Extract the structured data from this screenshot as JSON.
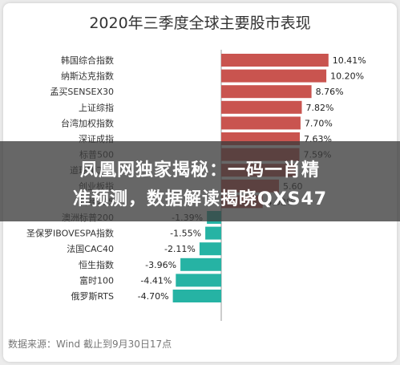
{
  "chart_data": {
    "type": "bar",
    "orientation": "horizontal",
    "title": "2020年三季度全球主要股市表现",
    "categories": [
      "韩国综合指数",
      "纳斯达克指数",
      "孟买SENSEX30",
      "上证综指",
      "台湾加权指数",
      "深证成指",
      "标普500",
      "道琼斯工业",
      "创业板指",
      "日经225",
      "澳洲标普200",
      "圣保罗IBOVESPA指数",
      "法国CAC40",
      "恒生指数",
      "富时100",
      "俄罗斯RTS"
    ],
    "values": [
      10.41,
      10.2,
      8.76,
      7.82,
      7.7,
      7.63,
      7.59,
      7.2,
      5.6,
      4.02,
      -1.39,
      -1.55,
      -2.11,
      -3.96,
      -4.41,
      -4.7
    ],
    "value_labels": [
      "10.41%",
      "10.20%",
      "8.76%",
      "7.82%",
      "7.70%",
      "7.63%",
      "7.59%",
      "",
      "5.60",
      "4.02%",
      "-1.39%",
      "-1.55%",
      "-2.11%",
      "-3.96%",
      "-4.41%",
      "-4.70%"
    ],
    "unit": "%",
    "positive_color": "#c9544f",
    "negative_color": "#26b3a4",
    "xlim": [
      -4.7,
      10.41
    ],
    "grid": false,
    "legend": "none"
  },
  "overlay": {
    "line1": "凤凰网独家揭秘：一码一肖精",
    "line2": "准预测，数据解读揭晓QXS47"
  },
  "source_text": "数据来源：Wind  截止到9月30日17点"
}
